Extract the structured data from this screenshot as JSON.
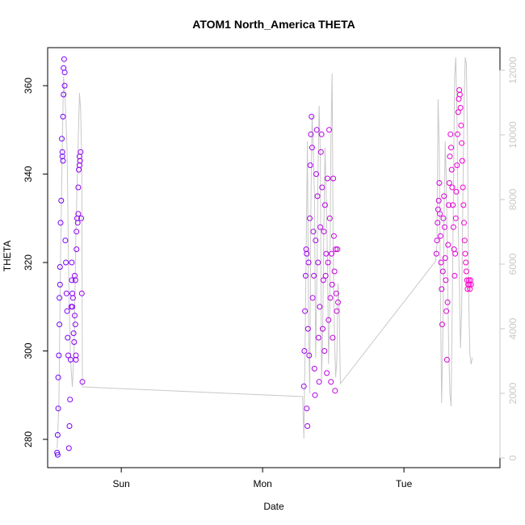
{
  "chart_data": {
    "type": "scatter",
    "title": "ATOM1 North_America THETA",
    "xlabel": "Date",
    "ylabel": "THETA",
    "x_unit": "hours",
    "x_ticks": [
      {
        "value": 24,
        "label": "Sun"
      },
      {
        "value": 48,
        "label": "Mon"
      },
      {
        "value": 72,
        "label": "Tue"
      }
    ],
    "xlim": [
      11.5,
      88.3
    ],
    "ylim": [
      273.6,
      368.6
    ],
    "y_ticks": [
      280,
      300,
      320,
      340,
      360
    ],
    "y2lim": [
      -300,
      12700
    ],
    "y2_ticks": [
      0,
      2000,
      4000,
      6000,
      8000,
      10000,
      12000
    ],
    "colors": {
      "start": "#6a00ff",
      "end": "#ff00cc",
      "line": "#c8c8c8",
      "axis": "#000000",
      "axis_right": "#c8c8c8"
    },
    "grid": false,
    "series": [
      {
        "type": "points",
        "x": [
          13.1,
          13.2,
          13.2,
          13.3,
          13.3,
          13.4,
          13.5,
          13.5,
          13.6,
          13.6,
          13.7,
          13.8,
          13.9,
          14.0,
          14.0,
          14.1,
          14.1,
          14.2,
          14.2,
          14.3,
          14.4,
          14.4,
          14.5,
          14.6,
          14.7,
          14.8,
          14.9,
          15.0,
          15.1,
          15.2,
          15.3,
          15.4,
          15.5,
          15.6,
          15.6,
          15.7,
          15.7,
          15.8,
          15.9,
          16.0,
          16.1,
          16.1,
          16.2,
          16.2,
          16.3,
          16.3,
          16.4,
          16.4,
          16.5,
          16.6,
          16.7,
          16.7,
          16.8,
          16.9,
          16.9,
          17.0,
          17.1,
          17.2,
          17.3,
          17.4
        ],
        "y": [
          277,
          276.5,
          281,
          287,
          294,
          299,
          306,
          312,
          319,
          315,
          329,
          334,
          348,
          345,
          344,
          343,
          353,
          358,
          364,
          366,
          363,
          360,
          325,
          320,
          313,
          309,
          303,
          299,
          278,
          283,
          289,
          298,
          310,
          316,
          320,
          313,
          310,
          312,
          304,
          302,
          308,
          317,
          316,
          306,
          299,
          298,
          323,
          327,
          330,
          329,
          331,
          337,
          341,
          344,
          342,
          343,
          345,
          330,
          313,
          293
        ]
      },
      {
        "type": "points",
        "x": [
          55.0,
          55.1,
          55.2,
          55.3,
          55.4,
          55.5,
          55.5,
          55.6,
          55.7,
          55.8,
          55.9,
          56.0,
          56.1,
          56.2,
          56.3,
          56.4,
          56.5,
          56.6,
          56.7,
          56.8,
          56.9,
          57.0,
          57.1,
          57.2,
          57.3,
          57.4,
          57.5,
          57.6,
          57.7,
          57.8,
          57.9,
          58.0,
          58.1,
          58.2,
          58.3,
          58.4,
          58.5,
          58.6,
          58.7,
          58.8,
          58.9,
          59.0,
          59.1,
          59.2,
          59.3,
          59.4,
          59.5,
          59.6,
          59.7,
          59.8,
          59.9,
          60.0,
          60.1,
          60.2,
          60.3,
          60.4,
          60.5,
          60.6,
          60.7,
          60.8
        ],
        "y": [
          292,
          300,
          309,
          317,
          323,
          322,
          287,
          283,
          305,
          320,
          299,
          330,
          342,
          349,
          353,
          346,
          312,
          327,
          317,
          296,
          290,
          325,
          340,
          350,
          335,
          320,
          303,
          293,
          310,
          328,
          345,
          349,
          337,
          305,
          316,
          327,
          300,
          333,
          317,
          322,
          295,
          339,
          320,
          307,
          350,
          330,
          312,
          293,
          322,
          315,
          303,
          339,
          326,
          318,
          291,
          323,
          313,
          309,
          323,
          311
        ]
      },
      {
        "type": "points",
        "x": [
          77.5,
          77.6,
          77.7,
          77.8,
          77.9,
          78.0,
          78.1,
          78.2,
          78.3,
          78.4,
          78.5,
          78.6,
          78.7,
          78.8,
          78.9,
          79.0,
          79.1,
          79.2,
          79.3,
          79.4,
          79.5,
          79.6,
          79.7,
          79.8,
          79.9,
          80.0,
          80.1,
          80.2,
          80.3,
          80.4,
          80.5,
          80.6,
          80.7,
          80.8,
          80.9,
          81.0,
          81.1,
          81.2,
          81.3,
          81.4,
          81.5,
          81.6,
          81.7,
          81.8,
          81.9,
          82.0,
          82.1,
          82.2,
          82.3,
          82.4,
          82.5,
          82.6,
          82.7,
          82.8,
          82.9,
          83.0,
          83.1,
          83.2,
          83.3,
          83.4
        ],
        "y": [
          322,
          325,
          329,
          332,
          334,
          338,
          331,
          326,
          320,
          314,
          306,
          318,
          330,
          335,
          328,
          321,
          316,
          309,
          298,
          311,
          324,
          333,
          338,
          344,
          349,
          346,
          341,
          337,
          333,
          328,
          323,
          317,
          322,
          330,
          336,
          342,
          349,
          354,
          357,
          359,
          358,
          355,
          351,
          347,
          343,
          337,
          333,
          329,
          325,
          322,
          320,
          318,
          316,
          314,
          315,
          316,
          315,
          314,
          316,
          315
        ]
      },
      {
        "type": "line",
        "axis": "right",
        "x": [
          13.1,
          13.4,
          13.7,
          14.0,
          14.2,
          14.5,
          14.8,
          15.1,
          15.4,
          15.7,
          16.0,
          16.3,
          16.6,
          16.9,
          17.1,
          17.3,
          17.4,
          54.8,
          54.9,
          55.0,
          55.2,
          55.4,
          55.6,
          55.8,
          56.0,
          56.2,
          56.4,
          56.6,
          56.8,
          57.0,
          57.2,
          57.4,
          57.6,
          57.8,
          58.0,
          58.2,
          58.4,
          58.6,
          58.8,
          59.0,
          59.2,
          59.4,
          59.6,
          59.8,
          60.0,
          60.2,
          60.4,
          60.6,
          60.8,
          61.0,
          61.2,
          77.4,
          77.6,
          77.8,
          78.0,
          78.2,
          78.4,
          78.6,
          78.8,
          79.0,
          79.2,
          79.4,
          79.6,
          79.8,
          80.0,
          80.2,
          80.4,
          80.6,
          80.8,
          81.0,
          81.2,
          81.4,
          81.6,
          81.8,
          82.0,
          82.2,
          82.4,
          82.6,
          82.8,
          83.0,
          83.2,
          83.4,
          83.6
        ],
        "y": [
          300,
          1600,
          6200,
          9800,
          11800,
          11000,
          9500,
          5200,
          3000,
          2200,
          3400,
          7000,
          9200,
          11300,
          10800,
          9000,
          2200,
          1900,
          1200,
          600,
          3200,
          6500,
          9800,
          4200,
          2000,
          7800,
          10600,
          9600,
          8200,
          3100,
          5200,
          8800,
          10900,
          9400,
          2400,
          3800,
          7200,
          9600,
          8100,
          6200,
          2900,
          4700,
          9800,
          11900,
          6000,
          3800,
          2500,
          3000,
          5400,
          4800,
          2300,
          6100,
          6600,
          11100,
          9500,
          4800,
          1700,
          3800,
          7200,
          9800,
          8600,
          5700,
          3300,
          2000,
          1600,
          4700,
          8200,
          11800,
          12400,
          10600,
          7400,
          5500,
          3400,
          4600,
          8100,
          10900,
          12400,
          12200,
          9700,
          4800,
          3200,
          2900,
          3100
        ]
      }
    ]
  }
}
